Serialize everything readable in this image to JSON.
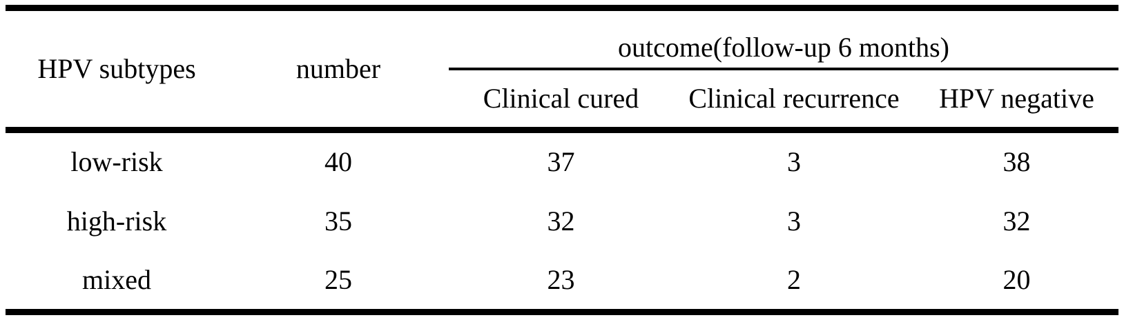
{
  "table": {
    "group_header": "outcome(follow-up 6 months)",
    "headers": {
      "subtype": "HPV subtypes",
      "number": "number",
      "clinical_cured": "Clinical cured",
      "clinical_recurrence": "Clinical recurrence",
      "hpv_negative": "HPV negative"
    },
    "rows": [
      {
        "subtype": "low-risk",
        "number": "40",
        "clinical_cured": "37",
        "clinical_recurrence": "3",
        "hpv_negative": "38"
      },
      {
        "subtype": "high-risk",
        "number": "35",
        "clinical_cured": "32",
        "clinical_recurrence": "3",
        "hpv_negative": "32"
      },
      {
        "subtype": "mixed",
        "number": "25",
        "clinical_cured": "23",
        "clinical_recurrence": "2",
        "hpv_negative": "20"
      }
    ]
  },
  "chart_data": {
    "type": "table",
    "title": "",
    "group_header": "outcome(follow-up 6 months)",
    "columns": [
      "HPV subtypes",
      "number",
      "Clinical cured",
      "Clinical recurrence",
      "HPV negative"
    ],
    "rows": [
      [
        "low-risk",
        40,
        37,
        3,
        38
      ],
      [
        "high-risk",
        35,
        32,
        3,
        32
      ],
      [
        "mixed",
        25,
        23,
        2,
        20
      ]
    ]
  },
  "colors": {
    "text": "#000000",
    "rules": "#000000",
    "background": "#ffffff"
  }
}
